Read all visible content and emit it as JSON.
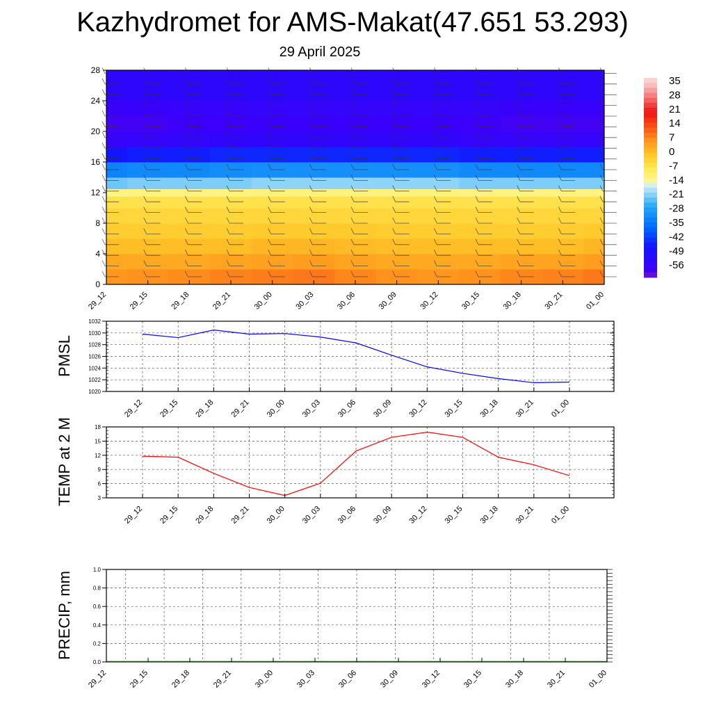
{
  "title": "Kazhydromet for AMS-Makat(47.651 53.293)",
  "subtitle": "29 April 2025",
  "chart_data": [
    {
      "type": "heatmap",
      "name": "vertical-temperature-section",
      "x": [
        "29_12",
        "29_15",
        "29_18",
        "29_21",
        "30_00",
        "30_03",
        "30_06",
        "30_09",
        "30_12",
        "30_15",
        "30_18",
        "30_21",
        "01_00"
      ],
      "ylim": [
        0,
        28
      ],
      "yticks": [
        0,
        4,
        8,
        12,
        16,
        20,
        24,
        28
      ],
      "grid": false,
      "colorbar": {
        "labels": [
          "35",
          "28",
          "21",
          "14",
          "7",
          "0",
          "-7",
          "-14",
          "-21",
          "-28",
          "-35",
          "-42",
          "-49",
          "-56"
        ],
        "range": [
          -60,
          38
        ],
        "placement": "right"
      },
      "levels": [
        0,
        2,
        4,
        6,
        8,
        10,
        11.5,
        12.5,
        14,
        16,
        18,
        20,
        22,
        24,
        28
      ],
      "temperature": [
        [
          8,
          9,
          10,
          11,
          12,
          12,
          10,
          9,
          8,
          9,
          10,
          11,
          12
        ],
        [
          6,
          6,
          6,
          7,
          7,
          8,
          7,
          6,
          6,
          6,
          7,
          7,
          8
        ],
        [
          3,
          3,
          3,
          3,
          4,
          4,
          3,
          3,
          3,
          3,
          3,
          3,
          4
        ],
        [
          0,
          0,
          0,
          0,
          1,
          1,
          1,
          0,
          0,
          0,
          0,
          0,
          1
        ],
        [
          -2,
          -2,
          -2,
          -2,
          -2,
          -2,
          -2,
          -2,
          -2,
          -2,
          -2,
          -2,
          -2
        ],
        [
          -4,
          -4,
          -4,
          -4,
          -4,
          -4,
          -4,
          -4,
          -4,
          -4,
          -4,
          -4,
          -4
        ],
        [
          -6,
          -6,
          -6,
          -6,
          -6,
          -6,
          -6,
          -6,
          -6,
          -6,
          -6,
          -6,
          -6
        ],
        [
          -17,
          -16,
          -16,
          -16,
          -15,
          -15,
          -15,
          -15,
          -15,
          -16,
          -16,
          -16,
          -16
        ],
        [
          -25,
          -24,
          -24,
          -24,
          -23,
          -23,
          -23,
          -23,
          -23,
          -24,
          -24,
          -24,
          -24
        ],
        [
          -38,
          -37,
          -37,
          -36,
          -36,
          -36,
          -36,
          -36,
          -36,
          -37,
          -37,
          -37,
          -37
        ],
        [
          -52,
          -51,
          -51,
          -50,
          -50,
          -50,
          -50,
          -50,
          -50,
          -51,
          -51,
          -51,
          -51
        ],
        [
          -57,
          -57,
          -56,
          -56,
          -56,
          -56,
          -56,
          -56,
          -56,
          -57,
          -57,
          -57,
          -57
        ],
        [
          -56,
          -56,
          -56,
          -56,
          -55,
          -55,
          -55,
          -55,
          -55,
          -55,
          -56,
          -56,
          -56
        ],
        [
          -54,
          -54,
          -53,
          -53,
          -53,
          -53,
          -53,
          -53,
          -53,
          -53,
          -54,
          -54,
          -54
        ],
        [
          -51,
          -51,
          -51,
          -51,
          -51,
          -51,
          -51,
          -51,
          -51,
          -51,
          -51,
          -51,
          -51
        ]
      ]
    },
    {
      "type": "line",
      "name": "pmsl",
      "ylabel": "PMSL",
      "x": [
        "29_12",
        "29_15",
        "29_18",
        "29_21",
        "30_00",
        "30_03",
        "30_06",
        "30_09",
        "30_12",
        "30_15",
        "30_18",
        "30_21",
        "01_00"
      ],
      "series": [
        {
          "values": [
            1029.8,
            1029.2,
            1030.5,
            1029.8,
            1029.9,
            1029.3,
            1028.3,
            1026.2,
            1024.2,
            1023.1,
            1022.2,
            1021.5,
            1021.6
          ],
          "color": "#0000ff"
        }
      ],
      "ylim": [
        1020,
        1032
      ],
      "yticks": [
        1020,
        1022,
        1024,
        1026,
        1028,
        1030,
        1032
      ],
      "grid": true
    },
    {
      "type": "line",
      "name": "temp-2m",
      "ylabel": "TEMP at 2 M",
      "x": [
        "29_12",
        "29_15",
        "29_18",
        "29_21",
        "30_00",
        "30_03",
        "30_06",
        "30_09",
        "30_12",
        "30_15",
        "30_18",
        "30_21",
        "01_00"
      ],
      "series": [
        {
          "values": [
            11.8,
            11.6,
            8.2,
            5.2,
            3.5,
            6.1,
            12.9,
            15.8,
            16.9,
            15.8,
            11.6,
            10.0,
            7.7
          ],
          "color": "#ff0000"
        }
      ],
      "ylim": [
        3,
        18
      ],
      "yticks": [
        3,
        6,
        9,
        12,
        15,
        18
      ],
      "grid": true
    },
    {
      "type": "line",
      "name": "precip",
      "ylabel": "PRECIP, mm",
      "x": [
        "29_12",
        "29_15",
        "29_18",
        "29_21",
        "30_00",
        "30_03",
        "30_06",
        "30_09",
        "30_12",
        "30_15",
        "30_18",
        "30_21",
        "01_00"
      ],
      "series": [
        {
          "values": [
            0,
            0,
            0,
            0,
            0,
            0,
            0,
            0,
            0,
            0,
            0,
            0,
            0
          ],
          "color": "#006400"
        }
      ],
      "ylim": [
        0,
        1
      ],
      "yticks": [
        "0.0",
        "0.2",
        "0.4",
        "0.6",
        "0.8",
        "1.0"
      ],
      "grid": true
    }
  ]
}
